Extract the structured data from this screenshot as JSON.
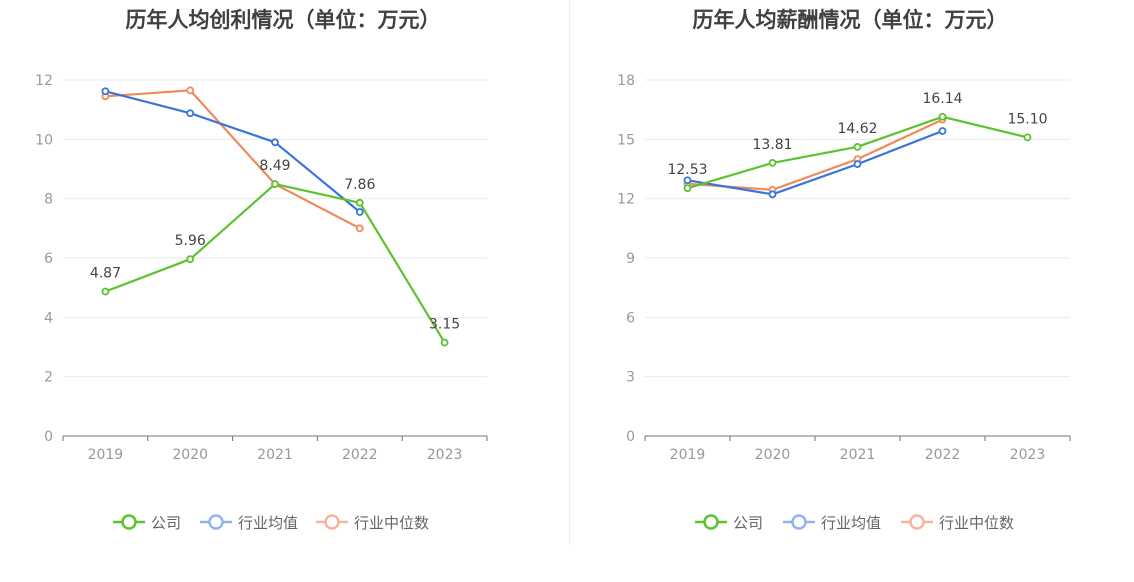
{
  "chart_data": [
    {
      "type": "line",
      "title": "历年人均创利情况（单位：万元）",
      "categories": [
        "2019",
        "2020",
        "2021",
        "2022",
        "2023"
      ],
      "ylim": [
        0,
        12
      ],
      "yticks": [
        0,
        2,
        4,
        6,
        8,
        10,
        12
      ],
      "grid": true,
      "legend_position": "bottom-center",
      "series": [
        {
          "name": "公司",
          "color": "#5cc22f",
          "values": [
            4.87,
            5.96,
            8.49,
            7.86,
            3.15
          ],
          "labels": [
            "4.87",
            "5.96",
            "8.49",
            "7.86",
            "3.15"
          ]
        },
        {
          "name": "行业均值",
          "color": "#3b74db",
          "values": [
            11.62,
            10.88,
            9.9,
            7.55,
            null
          ]
        },
        {
          "name": "行业中位数",
          "color": "#ef8a5b",
          "values": [
            11.45,
            11.65,
            8.49,
            7.0,
            null
          ]
        }
      ]
    },
    {
      "type": "line",
      "title": "历年人均薪酬情况（单位：万元）",
      "categories": [
        "2019",
        "2020",
        "2021",
        "2022",
        "2023"
      ],
      "ylim": [
        0,
        18
      ],
      "yticks": [
        0,
        3,
        6,
        9,
        12,
        15,
        18
      ],
      "grid": true,
      "legend_position": "bottom-center",
      "series": [
        {
          "name": "公司",
          "color": "#5cc22f",
          "values": [
            12.53,
            13.81,
            14.62,
            16.14,
            15.1
          ],
          "labels": [
            "12.53",
            "13.81",
            "14.62",
            "16.14",
            "15.10"
          ]
        },
        {
          "name": "行业均值",
          "color": "#3b74db",
          "values": [
            12.93,
            12.22,
            13.75,
            15.42,
            null
          ]
        },
        {
          "name": "行业中位数",
          "color": "#ef8a5b",
          "values": [
            12.75,
            12.45,
            14.0,
            16.0,
            null
          ]
        }
      ]
    }
  ]
}
